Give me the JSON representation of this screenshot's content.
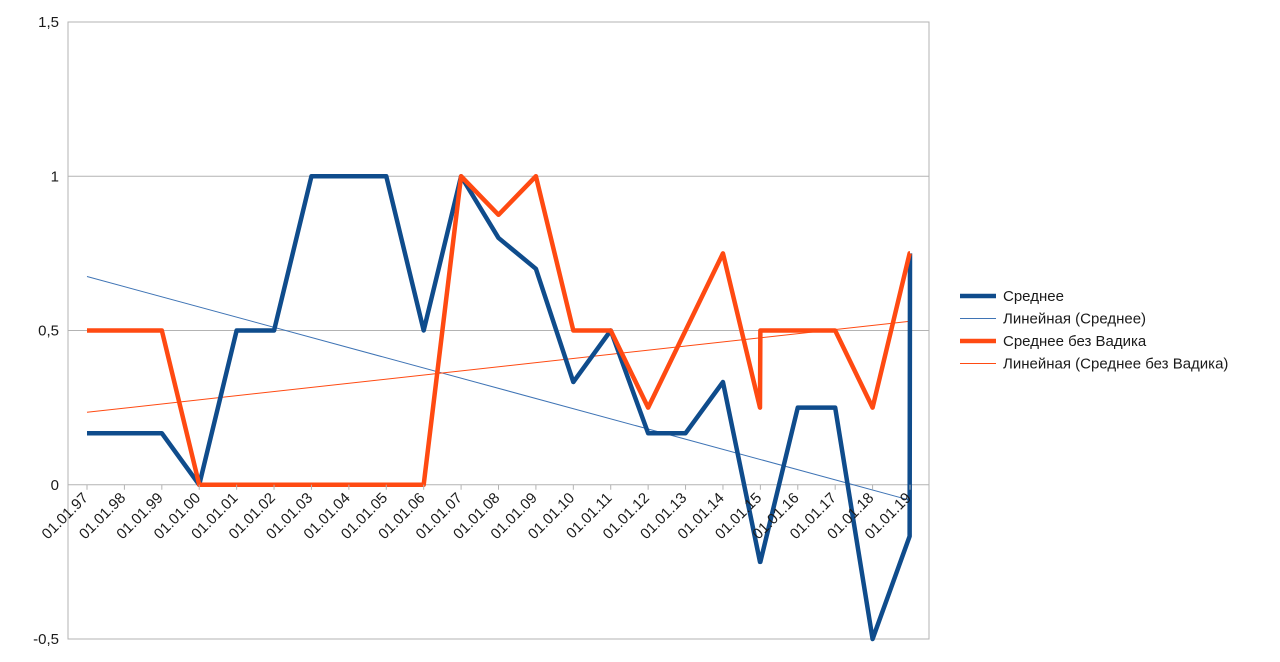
{
  "chart_data": {
    "type": "line",
    "title": "",
    "xlabel": "",
    "ylabel": "",
    "ylim": [
      -0.5,
      1.5
    ],
    "y_ticks": [
      -0.5,
      0,
      0.5,
      1,
      1.5
    ],
    "y_tick_labels": [
      "-0,5",
      "0",
      "0,5",
      "1",
      "1,5"
    ],
    "x_tick_labels": [
      "01.01.97",
      "01.01.98",
      "01.01.99",
      "01.01.00",
      "01.01.01",
      "01.01.02",
      "01.01.03",
      "01.01.04",
      "01.01.05",
      "01.01.06",
      "01.01.07",
      "01.01.08",
      "01.01.09",
      "01.01.10",
      "01.01.11",
      "01.01.12",
      "01.01.13",
      "01.01.14",
      "01.01.15",
      "01.01.16",
      "01.01.17",
      "01.01.18",
      "01.01.19"
    ],
    "grid": "horizontal",
    "legend_position": "right",
    "x": [
      1997,
      1998,
      1999,
      2000,
      2001,
      2002,
      2003,
      2004,
      2005,
      2006,
      2007,
      2008,
      2009,
      2010,
      2011,
      2012,
      2013,
      2014,
      2014.99,
      2015,
      2016,
      2017,
      2018,
      2018.99,
      2019
    ],
    "series": [
      {
        "name": "Среднее",
        "color": "#0f4c8c",
        "values": [
          0.167,
          0.167,
          0.167,
          0,
          0.5,
          0.5,
          1,
          1,
          1,
          0.5,
          1,
          0.8,
          0.7,
          0.333,
          0.5,
          0.167,
          0.167,
          0.333,
          -0.25,
          -0.25,
          0.25,
          0.25,
          -0.5,
          -0.167,
          0.75
        ]
      },
      {
        "name": "Среднее без Вадика",
        "color": "#ff4a12",
        "values": [
          0.5,
          0.5,
          0.5,
          0,
          0,
          0,
          0,
          0,
          0,
          0,
          1,
          0.875,
          1,
          0.5,
          0.5,
          0.25,
          0.5,
          0.75,
          0.25,
          0.5,
          0.5,
          0.5,
          0.25,
          0.75,
          0.75
        ]
      }
    ],
    "trendlines": [
      {
        "name": "Линейная (Среднее)",
        "color": "#3f74b5",
        "x": [
          1997,
          2019
        ],
        "values": [
          0.675,
          -0.05
        ]
      },
      {
        "name": "Линейная (Среднее без Вадика)",
        "color": "#ff4a12",
        "x": [
          1997,
          2019
        ],
        "values": [
          0.235,
          0.53
        ]
      }
    ]
  }
}
